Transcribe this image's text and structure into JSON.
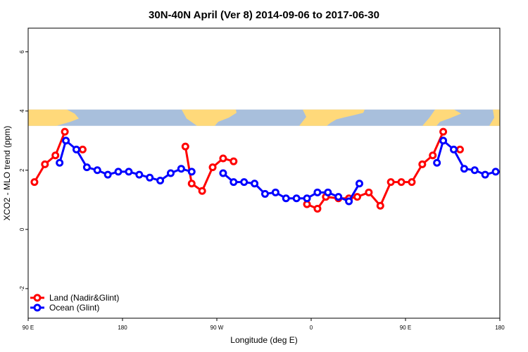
{
  "chart_data": {
    "type": "line",
    "title": "30N-40N April (Ver 8)   2014-09-06 to 2017-06-30",
    "xlabel": "Longitude (deg E)",
    "ylabel": "XCO2 - MLO trend (ppm)",
    "xlim": [
      90,
      540
    ],
    "ylim": [
      -3.0,
      6.8
    ],
    "x_ticks": [
      {
        "value": 90,
        "label": "90 E"
      },
      {
        "value": 180,
        "label": "180"
      },
      {
        "value": 270,
        "label": "90 W"
      },
      {
        "value": 360,
        "label": "0"
      },
      {
        "value": 450,
        "label": "90 E"
      },
      {
        "value": 540,
        "label": "180"
      }
    ],
    "y_ticks": [
      {
        "value": -2,
        "label": "-2"
      },
      {
        "value": 0,
        "label": "0"
      },
      {
        "value": 2,
        "label": "2"
      },
      {
        "value": 4,
        "label": "4"
      },
      {
        "value": 6,
        "label": "6"
      }
    ],
    "grid": false,
    "legend_position": "bottom-left",
    "map_strip": {
      "y_range": [
        3.5,
        4.05
      ],
      "land_color": "#FFD97A",
      "ocean_color": "#A8BFDC"
    },
    "series": [
      {
        "name": "Land (Nadir&Glint)",
        "color": "#FF0000",
        "segments": [
          [
            [
              96,
              1.6
            ],
            [
              106,
              2.2
            ],
            [
              116,
              2.5
            ],
            [
              125,
              3.3
            ]
          ],
          [
            [
              142,
              2.7
            ]
          ],
          [
            [
              240,
              2.8
            ],
            [
              246,
              1.55
            ],
            [
              256,
              1.3
            ],
            [
              266,
              2.1
            ],
            [
              276,
              2.4
            ],
            [
              286,
              2.3
            ]
          ],
          [
            [
              356,
              0.85
            ],
            [
              366,
              0.7
            ],
            [
              374,
              1.1
            ],
            [
              386,
              1.05
            ],
            [
              396,
              1.05
            ],
            [
              404,
              1.1
            ],
            [
              415,
              1.25
            ],
            [
              426,
              0.8
            ],
            [
              436,
              1.6
            ],
            [
              446,
              1.6
            ],
            [
              456,
              1.6
            ],
            [
              466,
              2.2
            ],
            [
              476,
              2.5
            ],
            [
              486,
              3.3
            ]
          ],
          [
            [
              502,
              2.7
            ]
          ]
        ]
      },
      {
        "name": "Ocean (Glint)",
        "color": "#0000FF",
        "segments": [
          [
            [
              120,
              2.25
            ],
            [
              126,
              3.0
            ],
            [
              136,
              2.7
            ],
            [
              146,
              2.1
            ],
            [
              156,
              2.0
            ],
            [
              166,
              1.85
            ],
            [
              176,
              1.95
            ],
            [
              186,
              1.95
            ],
            [
              196,
              1.85
            ],
            [
              206,
              1.75
            ],
            [
              216,
              1.65
            ],
            [
              226,
              1.9
            ],
            [
              236,
              2.05
            ],
            [
              246,
              1.95
            ]
          ],
          [
            [
              276,
              1.9
            ],
            [
              286,
              1.6
            ],
            [
              296,
              1.6
            ],
            [
              306,
              1.55
            ],
            [
              316,
              1.2
            ],
            [
              326,
              1.25
            ],
            [
              336,
              1.05
            ],
            [
              346,
              1.05
            ],
            [
              356,
              1.05
            ],
            [
              366,
              1.25
            ],
            [
              376,
              1.25
            ],
            [
              386,
              1.1
            ],
            [
              396,
              0.95
            ],
            [
              406,
              1.55
            ]
          ],
          [
            [
              480,
              2.25
            ],
            [
              486,
              3.0
            ],
            [
              496,
              2.7
            ],
            [
              506,
              2.05
            ],
            [
              516,
              2.0
            ],
            [
              526,
              1.85
            ],
            [
              536,
              1.95
            ]
          ]
        ]
      }
    ]
  }
}
